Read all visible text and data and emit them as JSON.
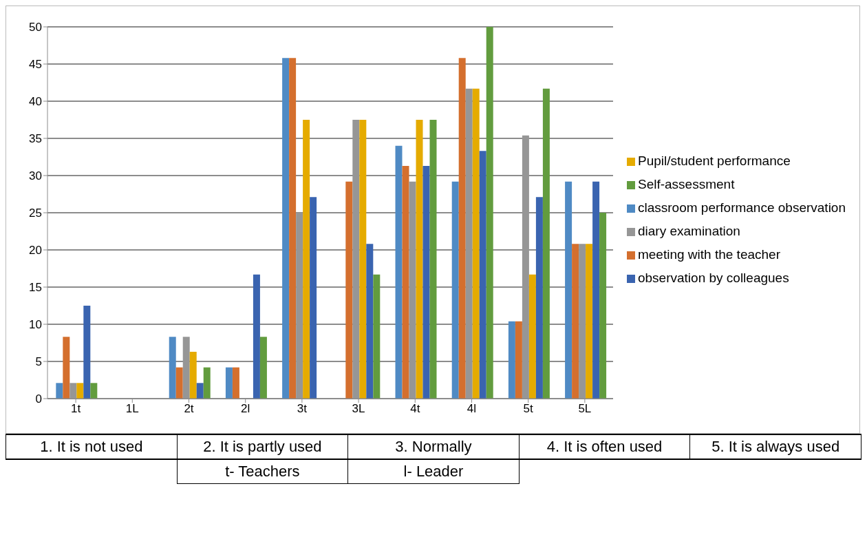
{
  "chart_data": {
    "type": "bar",
    "categories": [
      "1t",
      "1L",
      "2t",
      "2l",
      "3t",
      "3L",
      "4t",
      "4l",
      "5t",
      "5L"
    ],
    "series": [
      {
        "name": "classroom performance observation",
        "color": "#4f8ac4",
        "values": [
          2.1,
          0,
          8.3,
          4.2,
          45.8,
          0,
          34,
          29.2,
          10.4,
          29.2
        ]
      },
      {
        "name": "meeting with the teacher",
        "color": "#d46f2e",
        "values": [
          8.3,
          0,
          4.2,
          4.2,
          45.8,
          29.2,
          31.3,
          45.8,
          10.4,
          20.8
        ]
      },
      {
        "name": "diary examination",
        "color": "#969696",
        "values": [
          2.1,
          0,
          8.3,
          0,
          25,
          37.5,
          29.2,
          41.7,
          35.4,
          20.8
        ]
      },
      {
        "name": "Pupil/student performance",
        "color": "#e5ab00",
        "values": [
          2.1,
          0,
          6.3,
          0,
          37.5,
          37.5,
          37.5,
          41.7,
          16.7,
          20.8
        ]
      },
      {
        "name": "observation by colleagues",
        "color": "#3a64b0",
        "values": [
          12.5,
          0,
          2.1,
          16.7,
          27.1,
          20.8,
          31.3,
          33.3,
          27.1,
          29.2
        ]
      },
      {
        "name": "Self-assessment",
        "color": "#629c3e",
        "values": [
          2.1,
          0,
          4.2,
          8.3,
          0,
          16.7,
          37.5,
          50,
          41.7,
          25
        ]
      }
    ],
    "ylim": [
      0,
      50
    ],
    "yticks": [
      0,
      5,
      10,
      15,
      20,
      25,
      30,
      35,
      40,
      45,
      50
    ],
    "grid": "y",
    "legend": "right",
    "annotations": [
      "1.  It is not used",
      "2. It is partly used",
      "3. Normally",
      "4. It is often used",
      "5. It is always used",
      "t- Teachers",
      "l- Leader"
    ]
  }
}
